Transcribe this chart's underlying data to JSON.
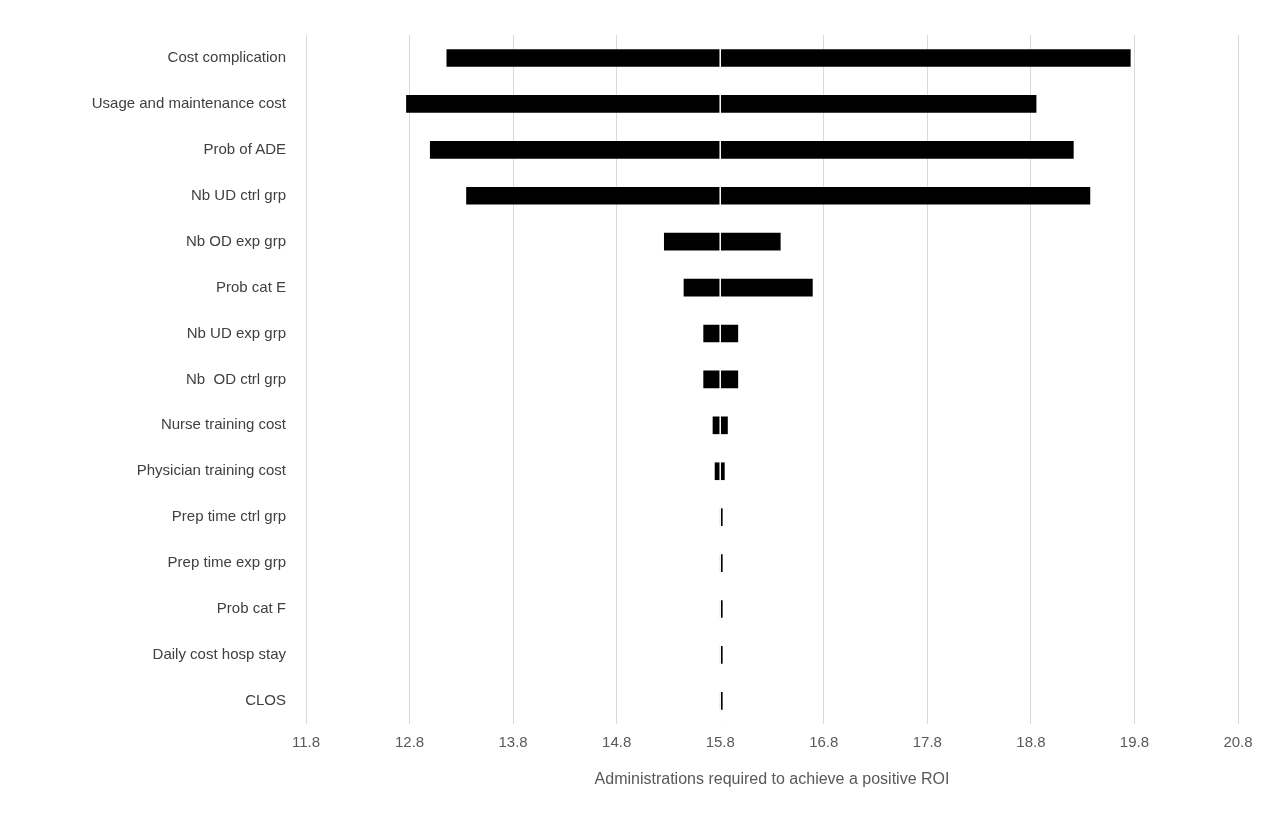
{
  "chart_data": {
    "type": "bar",
    "orientation": "horizontal",
    "xlabel": "Administrations required to achieve a positive ROI",
    "categories": [
      "Cost complication",
      "Usage and maintenance cost",
      "Prob of ADE",
      "Nb UD ctrl grp",
      "Nb OD exp grp",
      "Prob cat E",
      "Nb UD exp grp",
      "Nb  OD ctrl grp",
      "Nurse training cost",
      "Physician training cost",
      "Prep time ctrl grp",
      "Prep time exp grp",
      "Prob cat F",
      "Daily cost hosp stay",
      "CLOS"
    ],
    "color": "#000000",
    "base": [
      13.16,
      12.77,
      13.0,
      13.35,
      15.26,
      15.45,
      15.64,
      15.64,
      15.73,
      15.75,
      15.8,
      15.8,
      15.8,
      15.8,
      15.8
    ],
    "values": [
      6.6,
      6.08,
      6.21,
      6.02,
      1.12,
      1.24,
      0.33,
      0.33,
      0.14,
      0.09,
      0.02,
      0.02,
      0.02,
      0.02,
      0.02
    ],
    "ref_lines": [
      {
        "axis": "x",
        "value": 15.8,
        "color": "#ffffff"
      }
    ],
    "xlim": [
      11.8,
      20.8
    ],
    "xticks": [
      11.8,
      12.8,
      13.8,
      14.8,
      15.8,
      16.8,
      17.8,
      18.8,
      19.8,
      20.8
    ],
    "grid": "x"
  }
}
